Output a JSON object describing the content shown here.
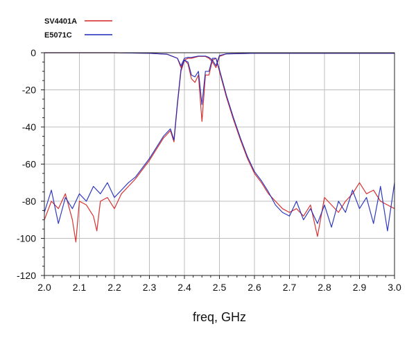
{
  "chart_data": {
    "type": "line",
    "title": "",
    "xlabel": "freq, GHz",
    "ylabel": "",
    "xlim": [
      2.0,
      3.0
    ],
    "ylim": [
      -120,
      0
    ],
    "x_ticks": [
      "2.0",
      "2.1",
      "2.2",
      "2.3",
      "2.4",
      "2.5",
      "2.6",
      "2.7",
      "2.8",
      "2.9",
      "3.0"
    ],
    "y_ticks": [
      "0",
      "-20",
      "-40",
      "-60",
      "-80",
      "-100",
      "-120"
    ],
    "grid": true,
    "legend_position": "top-left",
    "series": [
      {
        "name": "SV4401A",
        "color": "#d42020",
        "traces": [
          {
            "trace": "transmission",
            "x": [
              2.0,
              2.02,
              2.04,
              2.06,
              2.08,
              2.09,
              2.1,
              2.12,
              2.14,
              2.15,
              2.16,
              2.18,
              2.2,
              2.22,
              2.24,
              2.26,
              2.28,
              2.3,
              2.32,
              2.34,
              2.36,
              2.37,
              2.38,
              2.39,
              2.4,
              2.41,
              2.42,
              2.43,
              2.44,
              2.45,
              2.46,
              2.47,
              2.48,
              2.49,
              2.5,
              2.52,
              2.54,
              2.56,
              2.58,
              2.6,
              2.62,
              2.64,
              2.66,
              2.68,
              2.7,
              2.72,
              2.74,
              2.76,
              2.78,
              2.8,
              2.82,
              2.84,
              2.86,
              2.88,
              2.9,
              2.92,
              2.94,
              2.96,
              2.98,
              3.0
            ],
            "y": [
              -90,
              -80,
              -84,
              -76,
              -90,
              -102,
              -80,
              -82,
              -88,
              -96,
              -80,
              -78,
              -84,
              -76,
              -72,
              -68,
              -63,
              -58,
              -52,
              -46,
              -42,
              -48,
              -28,
              -10,
              -4,
              -6,
              -14,
              -16,
              -12,
              -37,
              -12,
              -12,
              -4,
              -3,
              -10,
              -24,
              -36,
              -47,
              -57,
              -65,
              -70,
              -76,
              -80,
              -84,
              -86,
              -84,
              -88,
              -82,
              -99,
              -78,
              -82,
              -86,
              -80,
              -76,
              -70,
              -76,
              -74,
              -80,
              -82,
              -84
            ]
          },
          {
            "trace": "reflection",
            "x": [
              2.0,
              2.1,
              2.2,
              2.3,
              2.35,
              2.38,
              2.39,
              2.4,
              2.41,
              2.42,
              2.44,
              2.46,
              2.47,
              2.48,
              2.49,
              2.5,
              2.52,
              2.6,
              2.7,
              2.8,
              2.9,
              3.0
            ],
            "y": [
              0,
              0,
              0,
              -0.3,
              -0.8,
              -3,
              -8,
              -4,
              -3,
              -3,
              -2,
              -2,
              -3,
              -5,
              -8,
              -2,
              -0.6,
              -0.3,
              -0.3,
              -0.3,
              -0.3,
              -0.3
            ]
          }
        ]
      },
      {
        "name": "E5071C",
        "color": "#1c28b8",
        "traces": [
          {
            "trace": "transmission",
            "x": [
              2.0,
              2.02,
              2.04,
              2.06,
              2.08,
              2.1,
              2.12,
              2.14,
              2.16,
              2.18,
              2.2,
              2.22,
              2.24,
              2.26,
              2.28,
              2.3,
              2.32,
              2.34,
              2.36,
              2.37,
              2.38,
              2.39,
              2.4,
              2.41,
              2.42,
              2.43,
              2.44,
              2.45,
              2.46,
              2.47,
              2.48,
              2.49,
              2.5,
              2.52,
              2.54,
              2.56,
              2.58,
              2.6,
              2.62,
              2.64,
              2.66,
              2.68,
              2.7,
              2.72,
              2.74,
              2.76,
              2.78,
              2.8,
              2.82,
              2.84,
              2.86,
              2.88,
              2.9,
              2.92,
              2.94,
              2.96,
              2.98,
              3.0
            ],
            "y": [
              -86,
              -74,
              -92,
              -78,
              -84,
              -76,
              -80,
              -72,
              -76,
              -70,
              -78,
              -74,
              -70,
              -67,
              -62,
              -57,
              -51,
              -45,
              -41,
              -47,
              -27,
              -9,
              -4,
              -5,
              -12,
              -13,
              -10,
              -28,
              -10,
              -10,
              -3,
              -3,
              -9,
              -23,
              -35,
              -46,
              -56,
              -64,
              -69,
              -75,
              -82,
              -86,
              -88,
              -80,
              -90,
              -84,
              -92,
              -82,
              -94,
              -80,
              -86,
              -74,
              -84,
              -78,
              -92,
              -72,
              -96,
              -70
            ]
          },
          {
            "trace": "reflection",
            "x": [
              2.0,
              2.1,
              2.2,
              2.3,
              2.35,
              2.38,
              2.39,
              2.4,
              2.41,
              2.42,
              2.44,
              2.46,
              2.47,
              2.48,
              2.49,
              2.5,
              2.52,
              2.6,
              2.7,
              2.8,
              2.9,
              3.0
            ],
            "y": [
              0,
              0,
              0,
              -0.3,
              -0.8,
              -3,
              -7,
              -3,
              -2.5,
              -2.5,
              -1.8,
              -1.8,
              -2.5,
              -4,
              -7,
              -1.5,
              -0.6,
              -0.3,
              -0.3,
              -0.3,
              -0.3,
              -0.3
            ]
          }
        ]
      }
    ]
  }
}
